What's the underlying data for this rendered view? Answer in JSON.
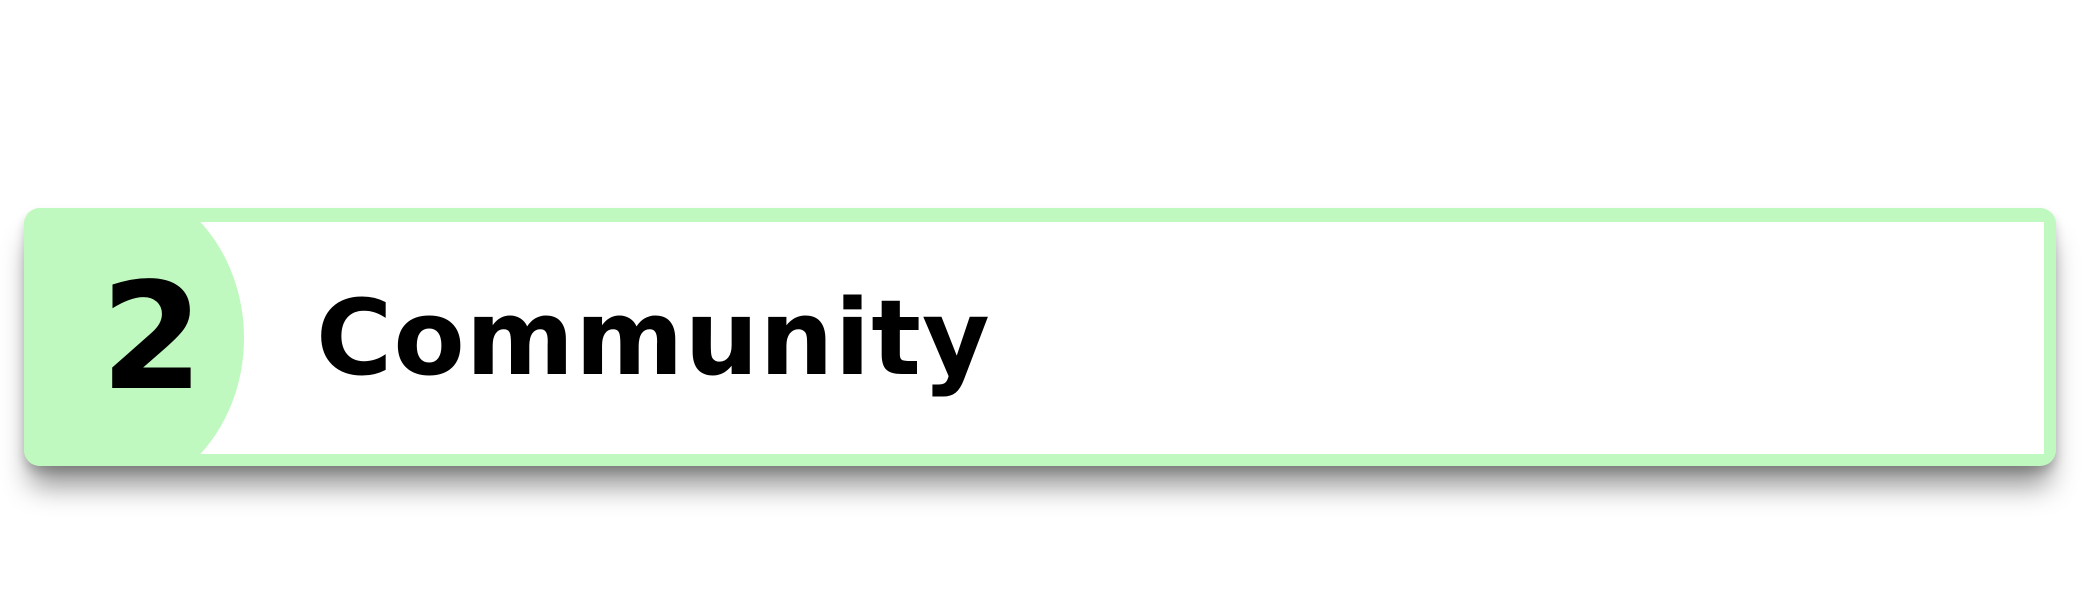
{
  "step": {
    "number": "2",
    "title": "Community"
  },
  "colors": {
    "accent": "#c0f9bf",
    "panel": "#ffffff",
    "text": "#000000"
  }
}
